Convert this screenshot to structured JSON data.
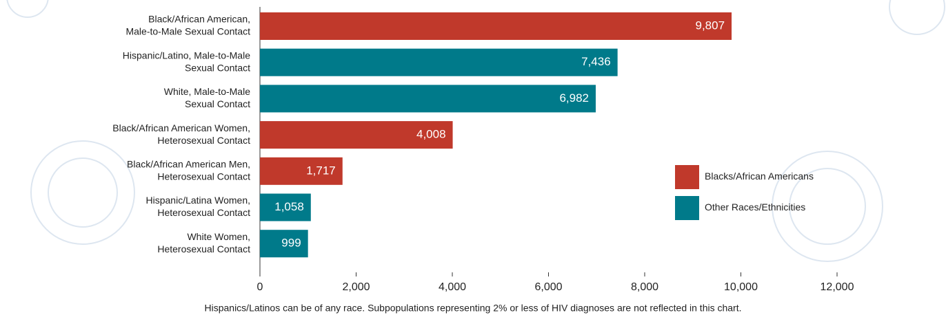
{
  "chart_data": {
    "type": "bar",
    "orientation": "horizontal",
    "categories": [
      [
        "Black/African American,",
        "Male-to-Male Sexual Contact"
      ],
      [
        "Hispanic/Latino, Male-to-Male",
        "Sexual Contact"
      ],
      [
        "White, Male-to-Male",
        "Sexual Contact"
      ],
      [
        "Black/African American Women,",
        "Heterosexual Contact"
      ],
      [
        "Black/African American Men,",
        "Heterosexual Contact"
      ],
      [
        "Hispanic/Latina Women,",
        "Heterosexual Contact"
      ],
      [
        "White Women,",
        "Heterosexual Contact"
      ]
    ],
    "series": [
      {
        "name": "Blacks/African Americans",
        "color": "#c0392b",
        "values": [
          9807,
          null,
          null,
          4008,
          1717,
          null,
          null
        ],
        "value_labels": [
          "9,807",
          null,
          null,
          "4,008",
          "1,717",
          null,
          null
        ]
      },
      {
        "name": "Other Races/Ethnicities",
        "color": "#007a8a",
        "values": [
          null,
          7436,
          6982,
          null,
          null,
          1058,
          999
        ],
        "value_labels": [
          null,
          "7,436",
          "6,982",
          null,
          null,
          "1,058",
          "999"
        ]
      }
    ],
    "xlim": [
      0,
      12000
    ],
    "xticks": [
      0,
      {
        "value": 2000,
        "label": "2,000"
      },
      {
        "value": 4000,
        "label": "4,000"
      },
      {
        "value": 6000,
        "label": "6,000"
      },
      {
        "value": 8000,
        "label": "8,000"
      },
      {
        "value": 10000,
        "label": "10,000"
      },
      {
        "value": 12000,
        "label": "12,000"
      }
    ],
    "legend": "right",
    "footnote": "Hispanics/Latinos can be of any race. Subpopulations representing 2% or less of HIV diagnoses are not reflected in this chart."
  }
}
